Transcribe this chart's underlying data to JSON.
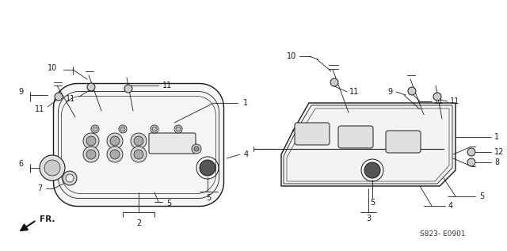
{
  "bg_color": "#ffffff",
  "line_color": "#1a1a1a",
  "diagram_code": "S823- E0901",
  "fr_label": "FR.",
  "fig_width": 6.4,
  "fig_height": 3.17,
  "dpi": 100
}
